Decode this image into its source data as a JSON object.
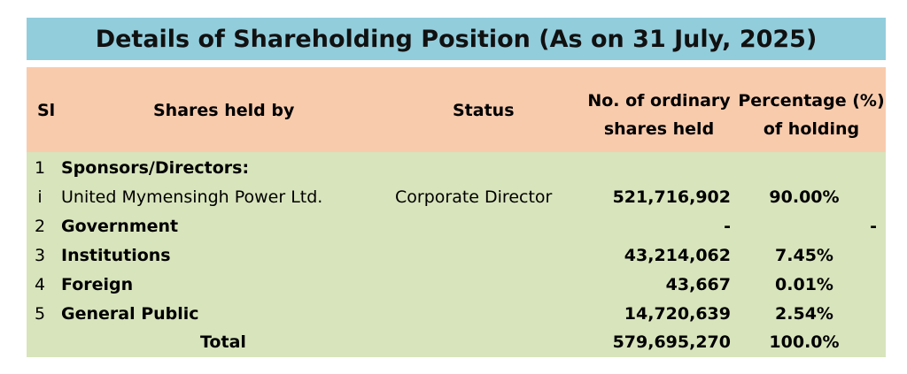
{
  "title": "Details of Shareholding Position (As on 31 July, 2025)",
  "headers": {
    "sl": "Sl",
    "held_by": "Shares held by",
    "status": "Status",
    "shares_line1": "No. of ordinary",
    "shares_line2": "shares held",
    "pct_line1": "Percentage (%)",
    "pct_line2": "of holding"
  },
  "rows": [
    {
      "sl": "1",
      "held_by": "Sponsors/Directors:",
      "status": "",
      "shares": "",
      "pct": ""
    },
    {
      "sl": "i",
      "held_by": "United Mymensingh Power Ltd.",
      "status": "Corporate Director",
      "shares": "521,716,902",
      "pct": "90.00%"
    },
    {
      "sl": "2",
      "held_by": "Government",
      "status": "",
      "shares": "-",
      "pct": "-"
    },
    {
      "sl": "3",
      "held_by": "Institutions",
      "status": "",
      "shares": "43,214,062",
      "pct": "7.45%"
    },
    {
      "sl": "4",
      "held_by": "Foreign",
      "status": "",
      "shares": "43,667",
      "pct": "0.01%"
    },
    {
      "sl": "5",
      "held_by": "General Public",
      "status": "",
      "shares": "14,720,639",
      "pct": "2.54%"
    }
  ],
  "total": {
    "label": "Total",
    "shares": "579,695,270",
    "pct": "100.0%"
  },
  "colors": {
    "title_bg": "#92cddc",
    "header_bg": "#f8cbad",
    "body_bg": "#d8e4bc"
  }
}
